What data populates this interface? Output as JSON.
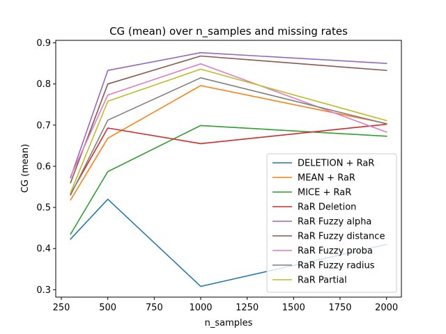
{
  "chart_data": {
    "type": "line",
    "title": "CG (mean) over n_samples and missing rates",
    "xlabel": "n_samples",
    "ylabel": "CG (mean)",
    "xlim": [
      220,
      2080
    ],
    "ylim": [
      0.282,
      0.906
    ],
    "xticks": [
      250,
      500,
      750,
      1000,
      1250,
      1500,
      1750,
      2000
    ],
    "xtick_labels": [
      "250",
      "500",
      "750",
      "1000",
      "1250",
      "1500",
      "1750",
      "2000"
    ],
    "yticks": [
      0.3,
      0.4,
      0.5,
      0.6,
      0.7,
      0.8,
      0.9
    ],
    "ytick_labels": [
      "0.3",
      "0.4",
      "0.5",
      "0.6",
      "0.7",
      "0.8",
      "0.9"
    ],
    "grid": false,
    "legend_position": "lower-right",
    "x": [
      300,
      500,
      1000,
      2000
    ],
    "series": [
      {
        "name": "DELETION + RaR",
        "color": "#1f77b4",
        "values": [
          0.423,
          0.52,
          0.308,
          0.41
        ]
      },
      {
        "name": "MEAN + RaR",
        "color": "#ff7f0e",
        "values": [
          0.518,
          0.668,
          0.796,
          0.704
        ]
      },
      {
        "name": "MICE + RaR",
        "color": "#2ca02c",
        "values": [
          0.435,
          0.587,
          0.699,
          0.673
        ]
      },
      {
        "name": "RaR Deletion",
        "color": "#d62728",
        "values": [
          0.533,
          0.693,
          0.655,
          0.702
        ]
      },
      {
        "name": "RaR Fuzzy alpha",
        "color": "#9467bd",
        "values": [
          0.572,
          0.833,
          0.876,
          0.85
        ]
      },
      {
        "name": "RaR Fuzzy distance",
        "color": "#8c564b",
        "values": [
          0.56,
          0.8,
          0.868,
          0.833
        ]
      },
      {
        "name": "RaR Fuzzy proba",
        "color": "#e377c2",
        "values": [
          0.575,
          0.773,
          0.849,
          0.683
        ]
      },
      {
        "name": "RaR Fuzzy radius",
        "color": "#7f7f7f",
        "values": [
          0.53,
          0.712,
          0.815,
          0.703
        ]
      },
      {
        "name": "RaR Partial",
        "color": "#bcbd22",
        "values": [
          0.536,
          0.758,
          0.836,
          0.711
        ]
      }
    ]
  }
}
